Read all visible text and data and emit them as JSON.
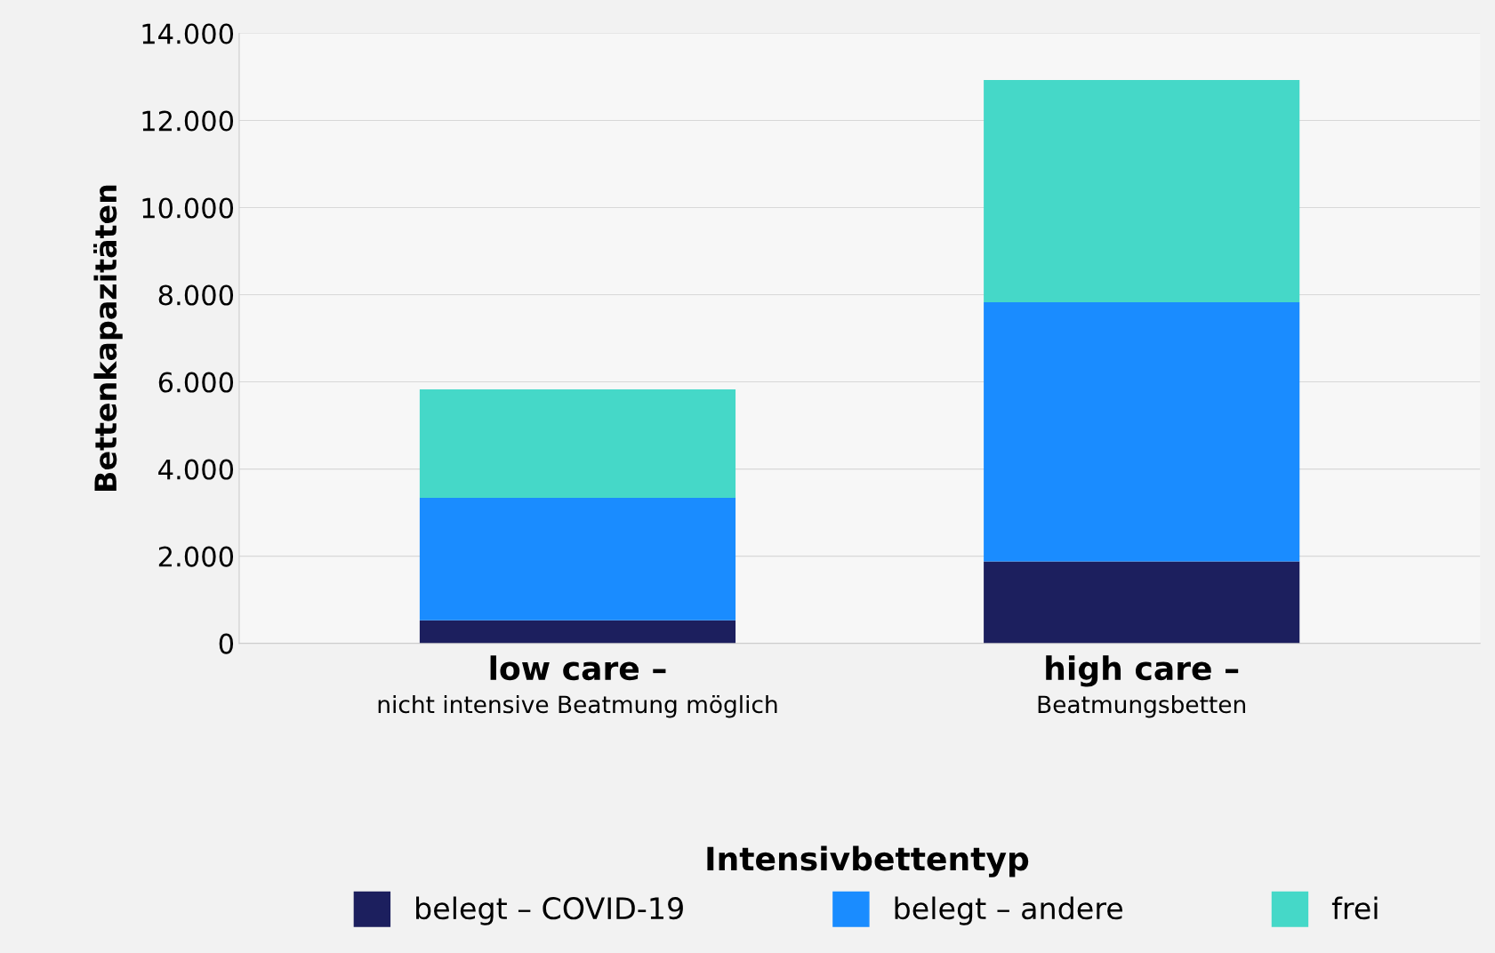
{
  "chart_data": {
    "type": "bar",
    "stacked": true,
    "ylabel": "Bettenkapazitäten",
    "legend_title": "Intensivbettentyp",
    "legend": "bottom",
    "grid": "y",
    "categories": [
      "low care –\nnicht intensive Beatmung möglich",
      "high care –\nBeatmungsbetten"
    ],
    "series": [
      {
        "name": "belegt – COVID-19",
        "color": "#1c1f5e",
        "values": [
          530,
          1880
        ]
      },
      {
        "name": "belegt – andere",
        "color": "#1a8cff",
        "values": [
          2810,
          5950
        ]
      },
      {
        "name": "frei",
        "color": "#45d8c8",
        "values": [
          2490,
          5100
        ]
      }
    ],
    "ylim": [
      0,
      14000
    ],
    "yticks": [
      {
        "value": 0,
        "label": "0"
      },
      {
        "value": 2000,
        "label": "2.000"
      },
      {
        "value": 4000,
        "label": "4.000"
      },
      {
        "value": 6000,
        "label": "6.000"
      },
      {
        "value": 8000,
        "label": "8.000"
      },
      {
        "value": 10000,
        "label": "10.000"
      },
      {
        "value": 12000,
        "label": "12.000"
      },
      {
        "value": 14000,
        "label": "14.000"
      }
    ]
  }
}
